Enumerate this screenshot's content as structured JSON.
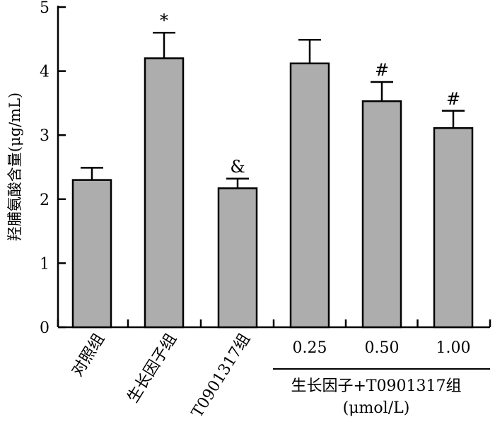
{
  "chart_data": {
    "type": "bar",
    "ylabel": "羟脯氨酸含量(μg/mL)",
    "ylim": [
      0,
      5
    ],
    "yticks": [
      0,
      1,
      2,
      3,
      4,
      5
    ],
    "grid": false,
    "categories": [
      "对照组",
      "生长因子组",
      "T0901317组",
      "0.25",
      "0.50",
      "1.00"
    ],
    "values": [
      2.3,
      4.2,
      2.17,
      4.12,
      3.53,
      3.11
    ],
    "errors": [
      0.19,
      0.4,
      0.15,
      0.37,
      0.3,
      0.27
    ],
    "significance": [
      "",
      "*",
      "&",
      "",
      "#",
      "#"
    ],
    "group_label": "生长因子+T0901317组",
    "group_unit": "(μmol/L)",
    "colors": {
      "bar": "#adadad",
      "stroke": "#000000"
    }
  }
}
